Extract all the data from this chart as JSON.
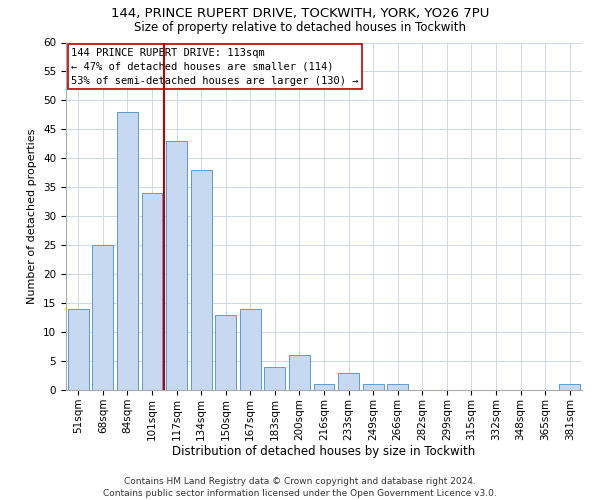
{
  "title1": "144, PRINCE RUPERT DRIVE, TOCKWITH, YORK, YO26 7PU",
  "title2": "Size of property relative to detached houses in Tockwith",
  "xlabel": "Distribution of detached houses by size in Tockwith",
  "ylabel": "Number of detached properties",
  "categories": [
    "51sqm",
    "68sqm",
    "84sqm",
    "101sqm",
    "117sqm",
    "134sqm",
    "150sqm",
    "167sqm",
    "183sqm",
    "200sqm",
    "216sqm",
    "233sqm",
    "249sqm",
    "266sqm",
    "282sqm",
    "299sqm",
    "315sqm",
    "332sqm",
    "348sqm",
    "365sqm",
    "381sqm"
  ],
  "values": [
    14,
    25,
    48,
    34,
    43,
    38,
    13,
    14,
    4,
    6,
    1,
    3,
    1,
    1,
    0,
    0,
    0,
    0,
    0,
    0,
    1
  ],
  "bar_color": "#c6d9f0",
  "bar_edge_color": "#5b9bd5",
  "vline_x_idx": 3.5,
  "vline_color": "#c00000",
  "annotation_text": "144 PRINCE RUPERT DRIVE: 113sqm\n← 47% of detached houses are smaller (114)\n53% of semi-detached houses are larger (130) →",
  "annotation_box_color": "#ffffff",
  "annotation_box_edge": "#c00000",
  "ylim": [
    0,
    60
  ],
  "yticks": [
    0,
    5,
    10,
    15,
    20,
    25,
    30,
    35,
    40,
    45,
    50,
    55,
    60
  ],
  "grid_color": "#d0d8e8",
  "footer": "Contains HM Land Registry data © Crown copyright and database right 2024.\nContains public sector information licensed under the Open Government Licence v3.0.",
  "bg_color": "#ffffff",
  "title1_fontsize": 9.5,
  "title2_fontsize": 8.5,
  "xlabel_fontsize": 8.5,
  "ylabel_fontsize": 8,
  "tick_fontsize": 7.5,
  "annotation_fontsize": 7.5,
  "footer_fontsize": 6.5
}
